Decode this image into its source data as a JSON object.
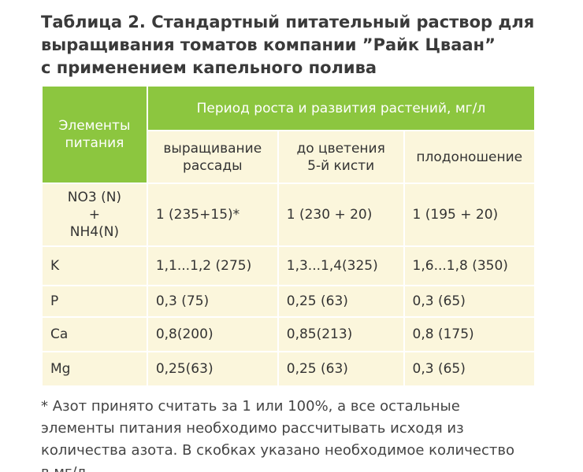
{
  "title": [
    "Таблица 2. Стандартный питательный раствор для",
    "выращивания томатов компании ”Райк Цваан”",
    "с применением капельного полива"
  ],
  "table": {
    "corner": [
      "Элементы",
      "питания"
    ],
    "group_header": "Период роста и развития растений, мг/л",
    "columns": [
      [
        "выращивание",
        "рассады"
      ],
      [
        "до цветения",
        "5-й кисти"
      ],
      [
        "плодоношение"
      ]
    ],
    "rows": [
      {
        "element": [
          "NO3 (N)",
          "+",
          "NH4(N)"
        ],
        "values": [
          "1 (235+15)*",
          "1 (230 + 20)",
          "1 (195 + 20)"
        ]
      },
      {
        "element": [
          "K"
        ],
        "values": [
          "1,1...1,2 (275)",
          "1,3...1,4(325)",
          "1,6...1,8 (350)"
        ]
      },
      {
        "element": [
          "P"
        ],
        "values": [
          "0,3 (75)",
          "0,25 (63)",
          "0,3 (65)"
        ]
      },
      {
        "element": [
          "Ca"
        ],
        "values": [
          "0,8(200)",
          "0,85(213)",
          "0,8 (175)"
        ]
      },
      {
        "element": [
          "Mg"
        ],
        "values": [
          "0,25(63)",
          "0,25 (63)",
          "0,3 (65)"
        ]
      }
    ]
  },
  "footnote": [
    "* Азот принято считать за 1 или 100%, а все остальные",
    "элементы питания необходимо рассчитывать исходя из",
    "количества азота. В скобках указано необходимое количество",
    "в мг/л."
  ]
}
